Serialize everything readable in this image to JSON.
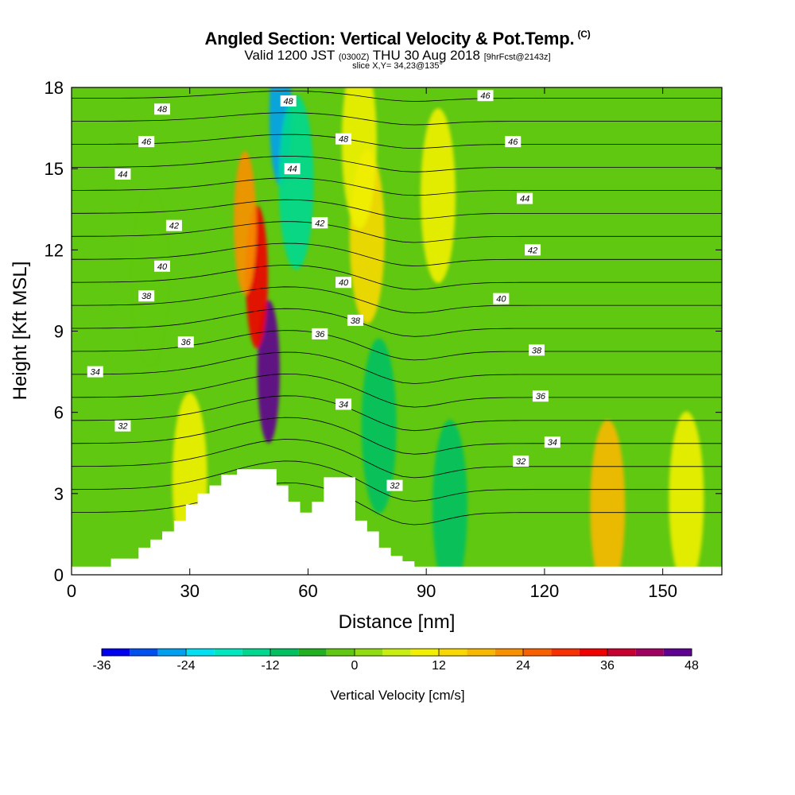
{
  "header": {
    "title": "Angled Section: Vertical Velocity & Pot.Temp.",
    "title_mark": "(C)",
    "valid_prefix": "Valid 1200 JST",
    "valid_utc": "(0300Z)",
    "valid_date": "THU 30 Aug 2018",
    "forecast_tag": "[9hrFcst@2143z]",
    "slice": "slice X,Y= 34,23@135°"
  },
  "chart_data": {
    "type": "heatmap",
    "subtype": "vertical cross-section with contour overlay",
    "xlabel": "Distance [nm]",
    "ylabel": "Height [Kft MSL]",
    "xlim": [
      0,
      165
    ],
    "ylim": [
      0,
      18
    ],
    "xticks": [
      0,
      30,
      60,
      90,
      120,
      150
    ],
    "yticks": [
      0,
      3,
      6,
      9,
      12,
      15,
      18
    ],
    "terrain_profile": {
      "x": [
        0,
        10,
        17,
        20,
        23,
        26,
        29,
        32,
        35,
        38,
        42,
        45,
        48,
        52,
        55,
        58,
        61,
        64,
        66,
        68,
        72,
        75,
        78,
        81,
        84,
        87,
        90,
        165
      ],
      "height": [
        0.3,
        0.6,
        1.0,
        1.3,
        1.6,
        2.0,
        2.6,
        3.0,
        3.3,
        3.7,
        3.9,
        3.9,
        3.9,
        3.3,
        2.7,
        2.3,
        2.7,
        3.6,
        3.6,
        3.6,
        2.0,
        1.6,
        1.0,
        0.7,
        0.5,
        0.3,
        0.3,
        0.3
      ]
    },
    "colorbar": {
      "label": "Vertical Velocity [cm/s]",
      "min": -36,
      "max": 48,
      "step": 4,
      "tick_labels": [
        "-36",
        "-24",
        "-12",
        "0",
        "12",
        "24",
        "36",
        "48"
      ],
      "colors": [
        "#0000f0",
        "#0050f0",
        "#00a0f0",
        "#00e0f0",
        "#00e8c0",
        "#00d890",
        "#00c060",
        "#20b020",
        "#60c810",
        "#90dc10",
        "#c8ee10",
        "#f0f000",
        "#f8d800",
        "#f8b800",
        "#f89000",
        "#f86000",
        "#f83000",
        "#f00000",
        "#c80030",
        "#a00060",
        "#600090"
      ]
    },
    "velocity_features": [
      {
        "x": 50,
        "height": 7.5,
        "value": 46
      },
      {
        "x": 47,
        "height": 11,
        "value": 32
      },
      {
        "x": 44,
        "height": 13,
        "value": 22
      },
      {
        "x": 53,
        "height": 17,
        "value": -28
      },
      {
        "x": 57,
        "height": 14.5,
        "value": -16
      },
      {
        "x": 75,
        "height": 12.5,
        "value": 12
      },
      {
        "x": 73,
        "height": 16,
        "value": 10
      },
      {
        "x": 93,
        "height": 14,
        "value": 8
      },
      {
        "x": 136,
        "height": 2.5,
        "value": 18
      },
      {
        "x": 156,
        "height": 2.8,
        "value": 8
      },
      {
        "x": 78,
        "height": 5.5,
        "value": -12
      },
      {
        "x": 96,
        "height": 2.5,
        "value": -12
      },
      {
        "x": 20,
        "height": 11,
        "value": -4
      },
      {
        "x": 30,
        "height": 3.5,
        "value": 8
      }
    ],
    "contours": {
      "variable": "Potential Temperature",
      "levels": [
        30,
        31,
        32,
        33,
        34,
        35,
        36,
        37,
        38,
        39,
        40,
        41,
        42,
        43,
        44,
        45,
        46,
        47,
        48,
        49
      ],
      "labels": [
        {
          "text": "48",
          "x": 23,
          "height": 17.2
        },
        {
          "text": "46",
          "x": 19,
          "height": 16.0
        },
        {
          "text": "44",
          "x": 13,
          "height": 14.8
        },
        {
          "text": "42",
          "x": 26,
          "height": 12.9
        },
        {
          "text": "40",
          "x": 23,
          "height": 11.4
        },
        {
          "text": "38",
          "x": 19,
          "height": 10.3
        },
        {
          "text": "36",
          "x": 29,
          "height": 8.6
        },
        {
          "text": "34",
          "x": 6,
          "height": 7.5
        },
        {
          "text": "32",
          "x": 13,
          "height": 5.5
        },
        {
          "text": "48",
          "x": 55,
          "height": 17.5
        },
        {
          "text": "44",
          "x": 56,
          "height": 15.0
        },
        {
          "text": "48",
          "x": 69,
          "height": 16.1
        },
        {
          "text": "42",
          "x": 63,
          "height": 13.0
        },
        {
          "text": "40",
          "x": 69,
          "height": 10.8
        },
        {
          "text": "38",
          "x": 72,
          "height": 9.4
        },
        {
          "text": "36",
          "x": 63,
          "height": 8.9
        },
        {
          "text": "34",
          "x": 69,
          "height": 6.3
        },
        {
          "text": "32",
          "x": 82,
          "height": 3.3
        },
        {
          "text": "46",
          "x": 105,
          "height": 17.7
        },
        {
          "text": "46",
          "x": 112,
          "height": 16.0
        },
        {
          "text": "44",
          "x": 115,
          "height": 13.9
        },
        {
          "text": "42",
          "x": 117,
          "height": 12.0
        },
        {
          "text": "40",
          "x": 109,
          "height": 10.2
        },
        {
          "text": "38",
          "x": 118,
          "height": 8.3
        },
        {
          "text": "36",
          "x": 119,
          "height": 6.6
        },
        {
          "text": "34",
          "x": 122,
          "height": 4.9
        },
        {
          "text": "32",
          "x": 114,
          "height": 4.2
        }
      ]
    }
  }
}
